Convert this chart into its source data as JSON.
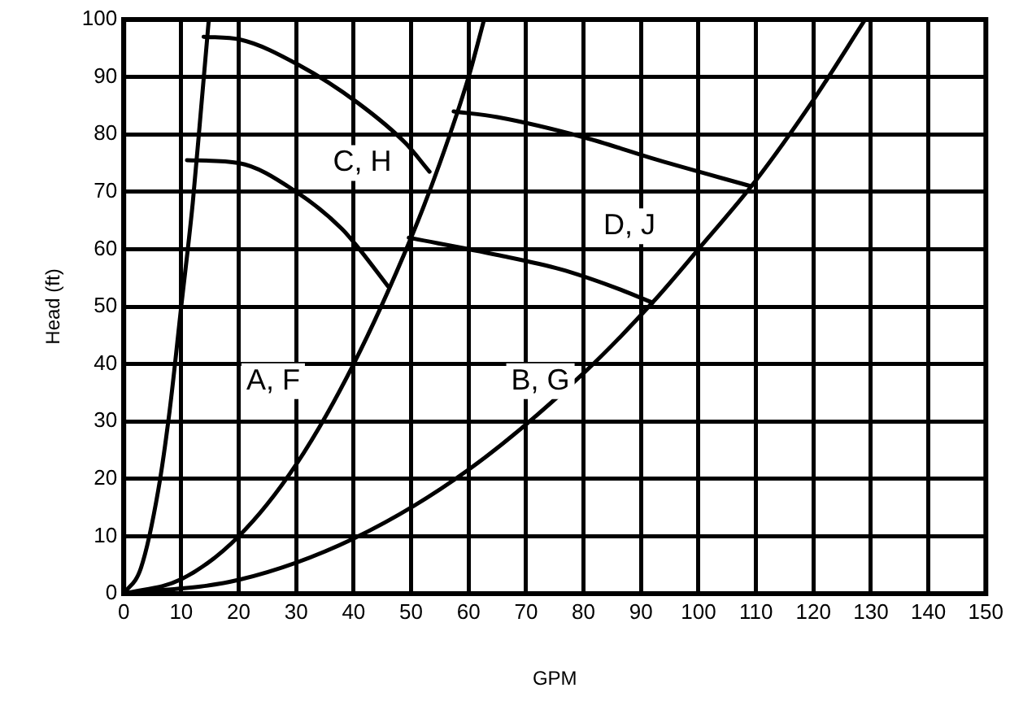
{
  "chart_data": {
    "type": "line",
    "xlabel": "GPM",
    "ylabel": "Head (ft)",
    "xlim": [
      0,
      150
    ],
    "xticks": [
      0,
      10,
      20,
      30,
      40,
      50,
      60,
      70,
      80,
      90,
      100,
      110,
      120,
      130,
      140,
      150
    ],
    "ylim": [
      0,
      100
    ],
    "yticks": [
      0,
      10,
      20,
      30,
      40,
      50,
      60,
      70,
      80,
      90,
      100
    ],
    "grid": true,
    "legend": false,
    "marker": "none",
    "line_style": "solid",
    "series": [
      {
        "color": "#000000",
        "x": [
          0,
          3,
          6,
          8,
          10,
          12,
          13.5,
          14.8
        ],
        "values": [
          0,
          4.5,
          18,
          32,
          50,
          68,
          85,
          100
        ]
      },
      {
        "color": "#000000",
        "x": [
          0,
          10,
          20,
          30,
          40,
          50,
          55,
          60,
          62.7
        ],
        "values": [
          0,
          2.5,
          10,
          22.5,
          40,
          62,
          75,
          90,
          100
        ]
      },
      {
        "color": "#000000",
        "x": [
          0,
          20,
          40,
          60,
          80,
          92,
          100,
          110,
          120,
          129
        ],
        "values": [
          0,
          2.4,
          9.6,
          21.6,
          38.4,
          50.7,
          60,
          72,
          86,
          100
        ]
      },
      {
        "color": "#000000",
        "x": [
          11,
          20,
          30,
          38,
          41,
          46
        ],
        "values": [
          75.5,
          75,
          70,
          63.5,
          60,
          53.5
        ]
      },
      {
        "color": "#000000",
        "x": [
          13.9,
          20.3,
          30.6,
          40.7,
          49,
          53.2
        ],
        "values": [
          97,
          96.5,
          92,
          85.5,
          78.5,
          73.5
        ]
      },
      {
        "color": "#000000",
        "x": [
          49.6,
          65,
          76,
          85,
          92
        ],
        "values": [
          62,
          59,
          56.5,
          53.5,
          50.7
        ]
      },
      {
        "color": "#000000",
        "x": [
          57.4,
          65,
          80,
          93,
          109
        ],
        "values": [
          84,
          83,
          79.5,
          75.5,
          71
        ]
      }
    ],
    "annotations": [
      {
        "text": "A, F",
        "x": 26,
        "y": 37
      },
      {
        "text": "B, G",
        "x": 72.5,
        "y": 37
      },
      {
        "text": "C, H",
        "x": 41.5,
        "y": 75
      },
      {
        "text": "D, J",
        "x": 88,
        "y": 64
      }
    ]
  }
}
